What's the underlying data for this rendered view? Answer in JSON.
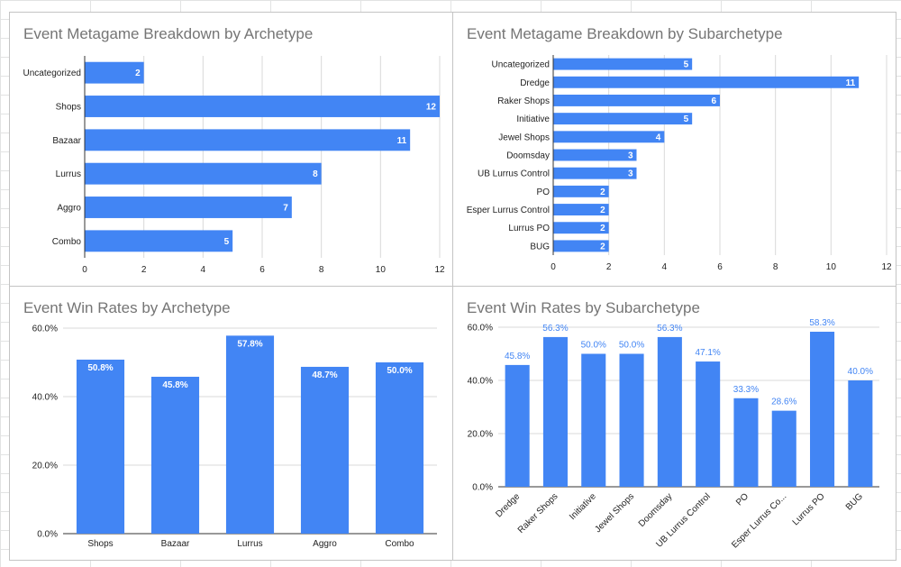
{
  "colors": {
    "bar": "#4285f4",
    "grid": "#d9d9d9",
    "axis": "#333333",
    "title": "#757575"
  },
  "chart_data": [
    {
      "id": "archetype-breakdown",
      "type": "bar",
      "orientation": "horizontal",
      "title": "Event Metagame Breakdown by Archetype",
      "categories": [
        "Uncategorized",
        "Shops",
        "Bazaar",
        "Lurrus",
        "Aggro",
        "Combo"
      ],
      "values": [
        2,
        12,
        11,
        8,
        7,
        5
      ],
      "data_labels": [
        "2",
        "12",
        "11",
        "8",
        "7",
        "5"
      ],
      "xlim": [
        0,
        12
      ],
      "xticks": [
        0,
        2,
        4,
        6,
        8,
        10,
        12
      ],
      "xtick_labels": [
        "0",
        "2",
        "4",
        "6",
        "8",
        "10",
        "12"
      ],
      "grid": true,
      "xlabel": "",
      "ylabel": ""
    },
    {
      "id": "subarchetype-breakdown",
      "type": "bar",
      "orientation": "horizontal",
      "title": "Event Metagame Breakdown by Subarchetype",
      "categories": [
        "Uncategorized",
        "Dredge",
        "Raker Shops",
        "Initiative",
        "Jewel Shops",
        "Doomsday",
        "UB Lurrus Control",
        "PO",
        "Esper Lurrus Control",
        "Lurrus PO",
        "BUG"
      ],
      "values": [
        5,
        11,
        6,
        5,
        4,
        3,
        3,
        2,
        2,
        2,
        2
      ],
      "data_labels": [
        "5",
        "11",
        "6",
        "5",
        "4",
        "3",
        "3",
        "2",
        "2",
        "2",
        "2"
      ],
      "xlim": [
        0,
        12
      ],
      "xticks": [
        0,
        2,
        4,
        6,
        8,
        10,
        12
      ],
      "xtick_labels": [
        "0",
        "2",
        "4",
        "6",
        "8",
        "10",
        "12"
      ],
      "grid": true,
      "xlabel": "",
      "ylabel": ""
    },
    {
      "id": "archetype-winrates",
      "type": "bar",
      "orientation": "vertical",
      "title": "Event Win Rates by Archetype",
      "categories": [
        "Shops",
        "Bazaar",
        "Lurrus",
        "Aggro",
        "Combo"
      ],
      "values": [
        50.8,
        45.8,
        57.8,
        48.7,
        50.0
      ],
      "data_labels": [
        "50.8%",
        "45.8%",
        "57.8%",
        "48.7%",
        "50.0%"
      ],
      "ylim": [
        0,
        60
      ],
      "yticks": [
        0,
        20,
        40,
        60
      ],
      "ytick_labels": [
        "0.0%",
        "20.0%",
        "40.0%",
        "60.0%"
      ],
      "grid": true,
      "label_position": "inside",
      "xlabel": "",
      "ylabel": ""
    },
    {
      "id": "subarchetype-winrates",
      "type": "bar",
      "orientation": "vertical",
      "title": "Event Win Rates by Subarchetype",
      "categories": [
        "Dredge",
        "Raker Shops",
        "Initiative",
        "Jewel Shops",
        "Doomsday",
        "UB Lurrus Control",
        "PO",
        "Esper Lurrus Co...",
        "Lurrus PO",
        "BUG"
      ],
      "values": [
        45.8,
        56.3,
        50.0,
        50.0,
        56.3,
        47.1,
        33.3,
        28.6,
        58.3,
        40.0
      ],
      "data_labels": [
        "45.8%",
        "56.3%",
        "50.0%",
        "50.0%",
        "56.3%",
        "47.1%",
        "33.3%",
        "28.6%",
        "58.3%",
        "40.0%"
      ],
      "ylim": [
        0,
        60
      ],
      "yticks": [
        0,
        20,
        40,
        60
      ],
      "ytick_labels": [
        "0.0%",
        "20.0%",
        "40.0%",
        "60.0%"
      ],
      "grid": true,
      "label_position": "above",
      "rotated_category_labels": true,
      "xlabel": "",
      "ylabel": ""
    }
  ]
}
